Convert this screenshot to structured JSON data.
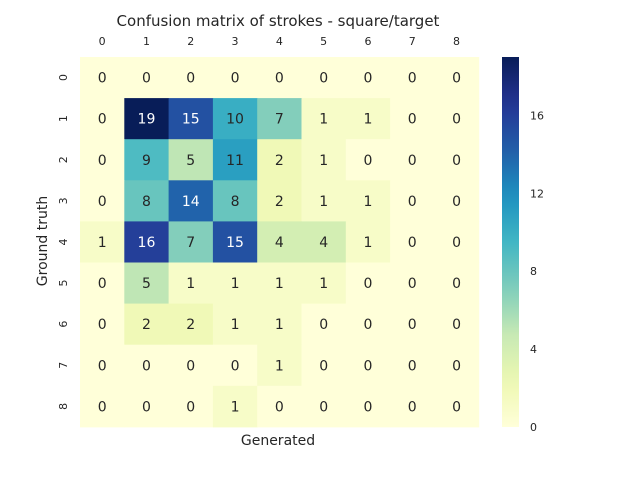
{
  "chart_data": {
    "type": "heatmap",
    "title": "Confusion matrix of strokes - square/target",
    "xlabel": "Generated",
    "ylabel": "Ground truth",
    "x_tick_labels": [
      "0",
      "1",
      "2",
      "3",
      "4",
      "5",
      "6",
      "7",
      "8"
    ],
    "y_tick_labels": [
      "0",
      "1",
      "2",
      "3",
      "4",
      "5",
      "6",
      "7",
      "8"
    ],
    "x_axis_position": "top",
    "matrix": [
      [
        0,
        0,
        0,
        0,
        0,
        0,
        0,
        0,
        0
      ],
      [
        0,
        19,
        15,
        10,
        7,
        1,
        1,
        0,
        0
      ],
      [
        0,
        9,
        5,
        11,
        2,
        1,
        0,
        0,
        0
      ],
      [
        0,
        8,
        14,
        8,
        2,
        1,
        1,
        0,
        0
      ],
      [
        1,
        16,
        7,
        15,
        4,
        4,
        1,
        0,
        0
      ],
      [
        0,
        5,
        1,
        1,
        1,
        1,
        0,
        0,
        0
      ],
      [
        0,
        2,
        2,
        1,
        1,
        0,
        0,
        0,
        0
      ],
      [
        0,
        0,
        0,
        0,
        1,
        0,
        0,
        0,
        0
      ],
      [
        0,
        0,
        0,
        1,
        0,
        0,
        0,
        0,
        0
      ]
    ],
    "colormap": "YlGnBu",
    "colorbar": {
      "min": 0,
      "max": 19,
      "ticks": [
        0,
        4,
        8,
        12,
        16
      ]
    },
    "annotations": true,
    "grid": false
  }
}
